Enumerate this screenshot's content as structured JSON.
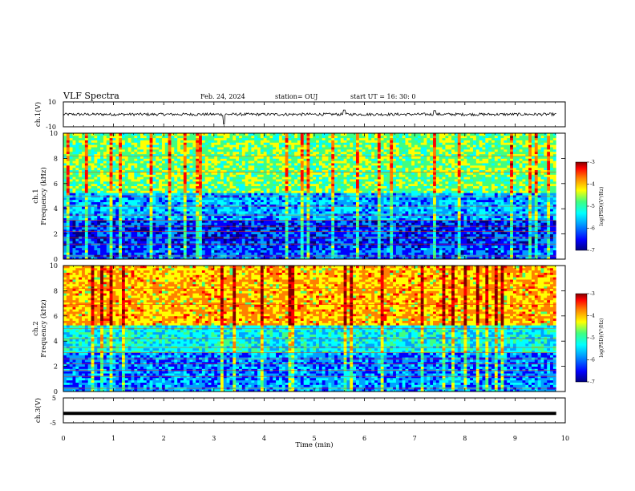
{
  "header": {
    "title": "VLF Spectra",
    "date": "Feb. 24, 2024",
    "station": "station= OUJ",
    "start_ut": "start  UT =   16: 30: 0"
  },
  "chart_data": [
    {
      "id": "ch1-waveform",
      "type": "line",
      "ylabel": "ch.1(V)",
      "ylim": [
        -10,
        10
      ],
      "ytick_labels": [
        "10",
        "-10"
      ],
      "xlim": [
        0,
        10
      ],
      "baseline": 0,
      "note_values": "noisy trace around 0 V, spikes near 3.2 and 5.6 min"
    },
    {
      "id": "ch1-spectrogram",
      "type": "heatmap",
      "ylabel": "ch.1\nFrequency (kHz)",
      "ylabel_line1": "ch.1",
      "ylabel_line2": "Frequency (kHz)",
      "ylim": [
        0,
        10
      ],
      "ytick_labels": [
        "0",
        "2",
        "4",
        "6",
        "8",
        "10"
      ],
      "xlim": [
        0,
        10
      ],
      "colorbar": {
        "label": "log(PSD)(V²/Hz)",
        "range": [
          -7,
          -3
        ],
        "tick_labels": [
          "-3",
          "-4",
          "-5",
          "-6",
          "-7"
        ]
      }
    },
    {
      "id": "ch2-spectrogram",
      "type": "heatmap",
      "ylabel_line1": "ch.2",
      "ylabel_line2": "Frequency (kHz)",
      "ylim": [
        0,
        10
      ],
      "ytick_labels": [
        "0",
        "2",
        "4",
        "6",
        "8",
        "10"
      ],
      "xlim": [
        0,
        10
      ],
      "colorbar": {
        "label": "log(PSD)(V²/Hz)",
        "range": [
          -7,
          -3
        ],
        "tick_labels": [
          "-3",
          "-4",
          "-5",
          "-6",
          "-7"
        ]
      }
    },
    {
      "id": "ch3-waveform",
      "type": "line",
      "ylabel": "ch.3(V)",
      "ylim": [
        -5,
        5
      ],
      "ytick_labels": [
        "5",
        "-5"
      ],
      "xlim": [
        0,
        10
      ],
      "level": -1.2
    }
  ],
  "xaxis": {
    "label": "Time (min)",
    "tick_labels": [
      "0",
      "1",
      "2",
      "3",
      "4",
      "5",
      "6",
      "7",
      "8",
      "9",
      "10"
    ],
    "data_end": 9.82
  },
  "colors": {
    "colormap": [
      "#000080",
      "#0000ff",
      "#00a0ff",
      "#00ffff",
      "#40ff80",
      "#ffff00",
      "#ff8000",
      "#ff0000",
      "#800000"
    ]
  }
}
